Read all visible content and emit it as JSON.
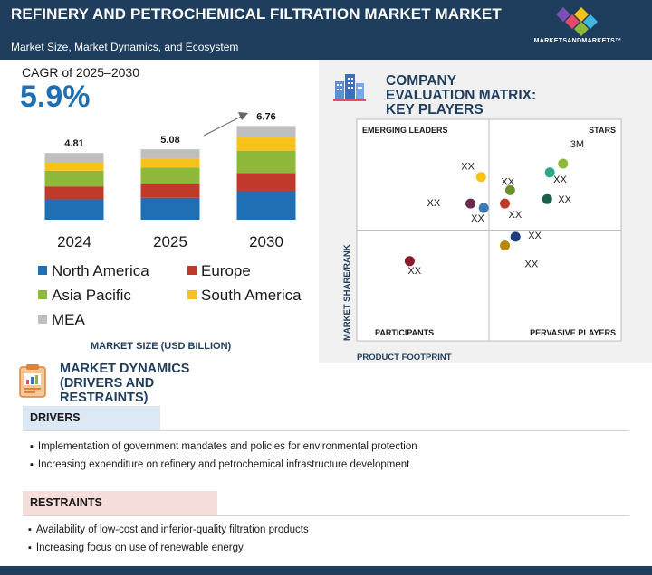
{
  "header": {
    "title": "REFINERY AND PETROCHEMICAL FILTRATION MARKET MARKET",
    "subtitle": "Market Size, Market Dynamics, and Ecosystem",
    "logo_text": "MARKETSANDMARKETS™"
  },
  "cagr": {
    "label": "CAGR of 2025–2030",
    "value": "5.9%"
  },
  "colors": {
    "north_america": "#1f6fb5",
    "europe": "#c0392b",
    "asia_pacific": "#8db83a",
    "south_america": "#f7c31a",
    "mea": "#bfbfbf",
    "header": "#1f3d5c"
  },
  "chart_data": [
    {
      "type": "bar",
      "stacked": true,
      "categories": [
        "2024",
        "2025",
        "2030"
      ],
      "totals": [
        "4.81",
        "5.08",
        "6.76"
      ],
      "series": [
        {
          "name": "North America",
          "color": "#1f6fb5",
          "values": [
            1.47,
            1.58,
            2.09
          ]
        },
        {
          "name": "Europe",
          "color": "#c0392b",
          "values": [
            0.93,
            0.98,
            1.28
          ]
        },
        {
          "name": "Asia Pacific",
          "color": "#8db83a",
          "values": [
            1.13,
            1.2,
            1.61
          ]
        },
        {
          "name": "South America",
          "color": "#f7c31a",
          "values": [
            0.61,
            0.65,
            0.95
          ]
        },
        {
          "name": "MEA",
          "color": "#bfbfbf",
          "values": [
            0.67,
            0.67,
            0.83
          ]
        }
      ],
      "xlabel": "MARKET SIZE (USD BILLION)",
      "ylim": [
        0,
        7.5
      ],
      "grid": false,
      "legend_position": "bottom"
    },
    {
      "type": "scatter",
      "title": "COMPANY EVALUATION MATRIX: KEY PLAYERS",
      "xlabel": "PRODUCT FOOTPRINT",
      "ylabel": "MARKET SHARE/RANK",
      "quadrants": {
        "top_left": "EMERGING LEADERS",
        "top_right": "STARS",
        "bottom_left": "PARTICIPANTS",
        "bottom_right": "PERVASIVE PLAYERS"
      },
      "xlim": [
        0,
        10
      ],
      "ylim": [
        0,
        10
      ],
      "points": [
        {
          "label": "3M",
          "x": 7.8,
          "y": 8.0,
          "color": "#8db83a"
        },
        {
          "label": "XX",
          "x": 7.3,
          "y": 7.6,
          "color": "#2aa889"
        },
        {
          "label": "XX",
          "x": 4.7,
          "y": 7.4,
          "color": "#f7c31a"
        },
        {
          "label": "XX",
          "x": 5.8,
          "y": 6.8,
          "color": "#6b8f2a"
        },
        {
          "label": "XX",
          "x": 5.6,
          "y": 6.2,
          "color": "#c0392b"
        },
        {
          "label": "XX",
          "x": 7.2,
          "y": 6.4,
          "color": "#1a5e4d"
        },
        {
          "label": "XX",
          "x": 4.3,
          "y": 6.2,
          "color": "#6b2a4d"
        },
        {
          "label": "XX",
          "x": 4.8,
          "y": 6.0,
          "color": "#3d7bb5"
        },
        {
          "label": "XX",
          "x": 6.0,
          "y": 4.7,
          "color": "#1f3d7a"
        },
        {
          "label": "XX",
          "x": 5.6,
          "y": 4.3,
          "color": "#b8860b"
        },
        {
          "label": "XX",
          "x": 2.0,
          "y": 3.6,
          "color": "#8b1a2a"
        }
      ]
    }
  ],
  "market_dynamics": {
    "title_lines": [
      "MARKET DYNAMICS",
      "(DRIVERS AND",
      "RESTRAINTS)"
    ],
    "drivers_label": "DRIVERS",
    "drivers": [
      "Implementation of government mandates and policies for environmental protection",
      "Increasing expenditure on refinery and petrochemical infrastructure development"
    ],
    "restraints_label": "RESTRAINTS",
    "restraints": [
      "Availability of low-cost and inferior-quality filtration products",
      "Increasing focus on use of renewable energy"
    ]
  }
}
